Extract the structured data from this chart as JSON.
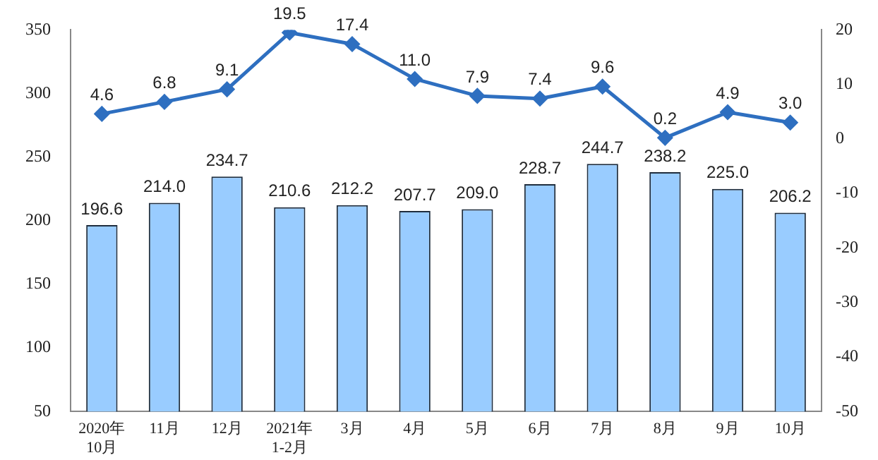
{
  "chart_data": {
    "type": "bar",
    "categories": [
      "2020年\n10月",
      "11月",
      "12月",
      "2021年\n1-2月",
      "3月",
      "4月",
      "5月",
      "6月",
      "7月",
      "8月",
      "9月",
      "10月"
    ],
    "series": [
      {
        "color": "#99ccff",
        "values": [
          196.6,
          214.0,
          234.7,
          210.6,
          212.2,
          207.7,
          209.0,
          228.7,
          244.7,
          238.2,
          225.0,
          206.2
        ],
        "value_labels": [
          "196.6",
          "214.0",
          "234.7",
          "210.6",
          "212.2",
          "207.7",
          "209.0",
          "228.7",
          "244.7",
          "238.2",
          "225.0",
          "206.2"
        ]
      },
      {
        "type": "line",
        "axis": "y2",
        "color": "#2e6fc0",
        "values": [
          4.6,
          6.8,
          9.1,
          19.5,
          17.4,
          11.0,
          7.9,
          7.4,
          9.6,
          0.2,
          4.9,
          3.0
        ],
        "value_labels": [
          "4.6",
          "6.8",
          "9.1",
          "19.5",
          "17.4",
          "11.0",
          "7.9",
          "7.4",
          "9.6",
          "0.2",
          "4.9",
          "3.0"
        ]
      }
    ],
    "ylim": [
      50,
      350
    ],
    "yticks": [
      50,
      100,
      150,
      200,
      250,
      300,
      350
    ],
    "y2lim": [
      -50,
      20
    ],
    "y2ticks": [
      -50,
      -40,
      -30,
      -20,
      -10,
      0,
      10,
      20
    ],
    "grid": false,
    "legend": false,
    "marker": "diamond",
    "line_style": "solid"
  }
}
